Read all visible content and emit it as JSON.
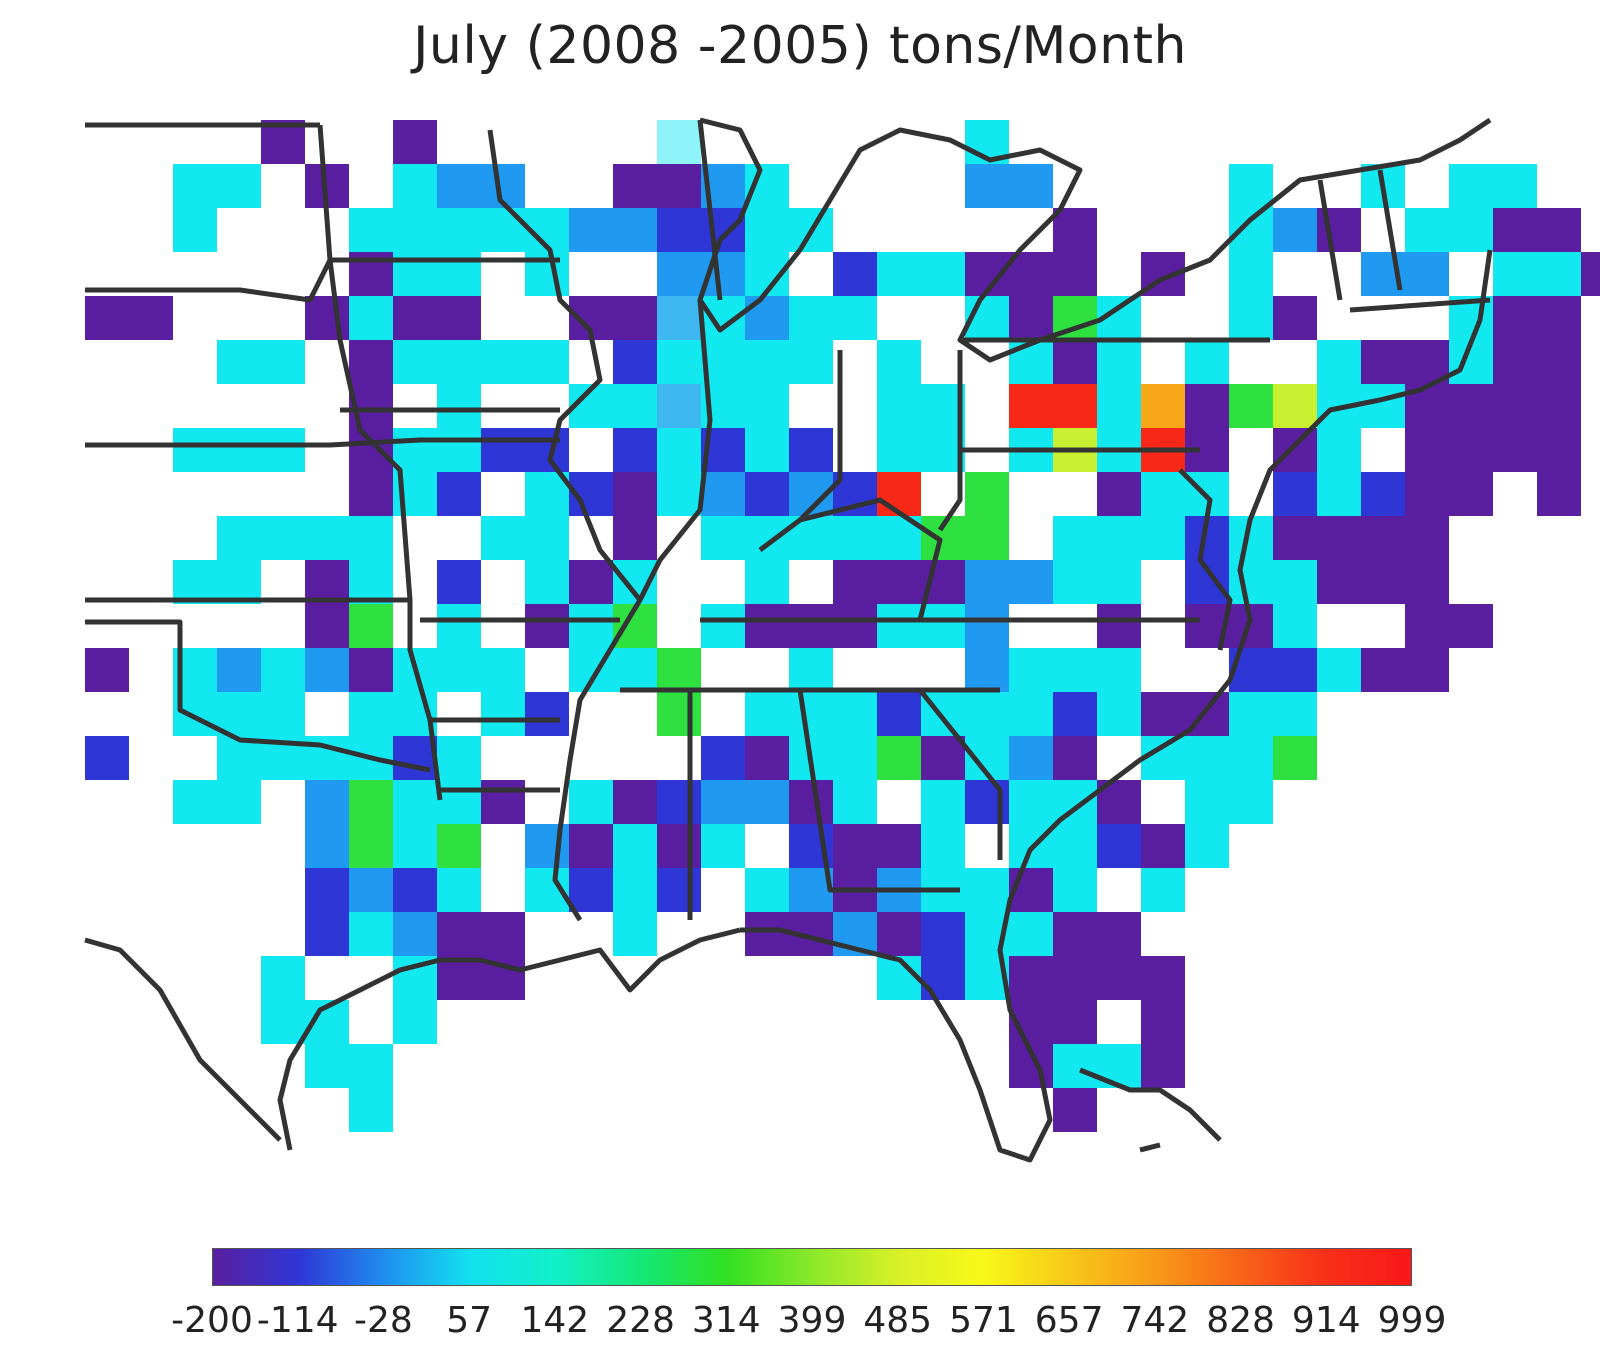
{
  "title": "July (2008 -2005)  tons/Month",
  "colorbar": {
    "ticks": [
      "-200",
      "-114",
      "-28",
      "57",
      "142",
      "228",
      "314",
      "399",
      "485",
      "571",
      "657",
      "742",
      "828",
      "914",
      "999"
    ],
    "colors": [
      "#5a1fa0",
      "#2f36d6",
      "#1f8ef0",
      "#12e0f0",
      "#12f0c8",
      "#14e878",
      "#30e020",
      "#8be82a",
      "#d8f028",
      "#f8f818",
      "#f8c818",
      "#f89a18",
      "#f86418",
      "#f83018",
      "#f81818"
    ]
  },
  "chart_data": {
    "type": "heatmap",
    "title": "July (2008 -2005)  tons/Month",
    "value_range": [
      -200,
      999
    ],
    "colorbar_ticks": [
      -200,
      -114,
      -28,
      57,
      142,
      228,
      314,
      399,
      485,
      571,
      657,
      742,
      828,
      914,
      999
    ],
    "grid": {
      "rows": [
        "....P..P.....~......T...........",
        "..TT.P.TCC..PPCT....CC....T..T.TT",
        "..T...TTTTTCCBBTT.....P...TCP.TTPP",
        "......PTT.T..CCT.BTTPPP.P.T..CC.TTP",
        "PP...PTPP..PPSTCTT..TPGT..TP...TPP",
        "...TT.PTTTT.BTTTT.T..TPT.T..TPPTPP.",
        "......P.T..TTSTT..TT.R.TTPGTTTPPPP.",
        "..TTT.PTTBB.BTBTB.TT.TTTTP.PT.PPPP",
        "......PTB.TBPTCBCBR.G..PTT.BTBPP.P",
        "...TTTT..TT.P.TTTTTGG.TTTBTPPPP...",
        "..TT.PT.B.TPT..T.PPPCCTT.BTTPPP...",
        ".....PG.T.PTG.TPPPTTC..P.PPT..PP...",
        "P.TCTCPTTT.TTG..T...CTTT..BBTPP....",
        "..TTT.TT.TB..G.TTTBTTTBTPPTT.......",
        "B..TTTTBT.....BPTTGPTCP.TTTG.......",
        "..TT.CGTTP.TPBCCPT.TBTTP.TT........",
        ".....CGTG.CPTPT.BPPT.TTBPT.........",
        ".....BCBT.TBTB.TCPCTTPT.T..........",
        ".....BTCPP..T..PPCPBTTPP...........",
        "....T..TPP........TBTPPPP..........",
        "....TT.T.............PP.P..........",
        ".....TT..............PTTP..........",
        "......T...............P............"
      ],
      "legend": {
        "P": "purple",
        "B": "blue",
        "C": "light-blue",
        "T": "cyan",
        "~": "pale-cyan",
        "S": "sky-blue",
        "G": "green",
        "R": "red",
        ".": "no-data"
      },
      "highlight_cells": [
        {
          "row": 6,
          "col": 22,
          "color": "red"
        },
        {
          "row": 6,
          "col": 24,
          "color": "orange"
        },
        {
          "row": 7,
          "col": 22,
          "color": "yellow-green"
        },
        {
          "row": 7,
          "col": 24,
          "color": "red"
        },
        {
          "row": 8,
          "col": 18,
          "color": "red"
        },
        {
          "row": 6,
          "col": 27,
          "color": "yellow-green"
        }
      ]
    }
  }
}
